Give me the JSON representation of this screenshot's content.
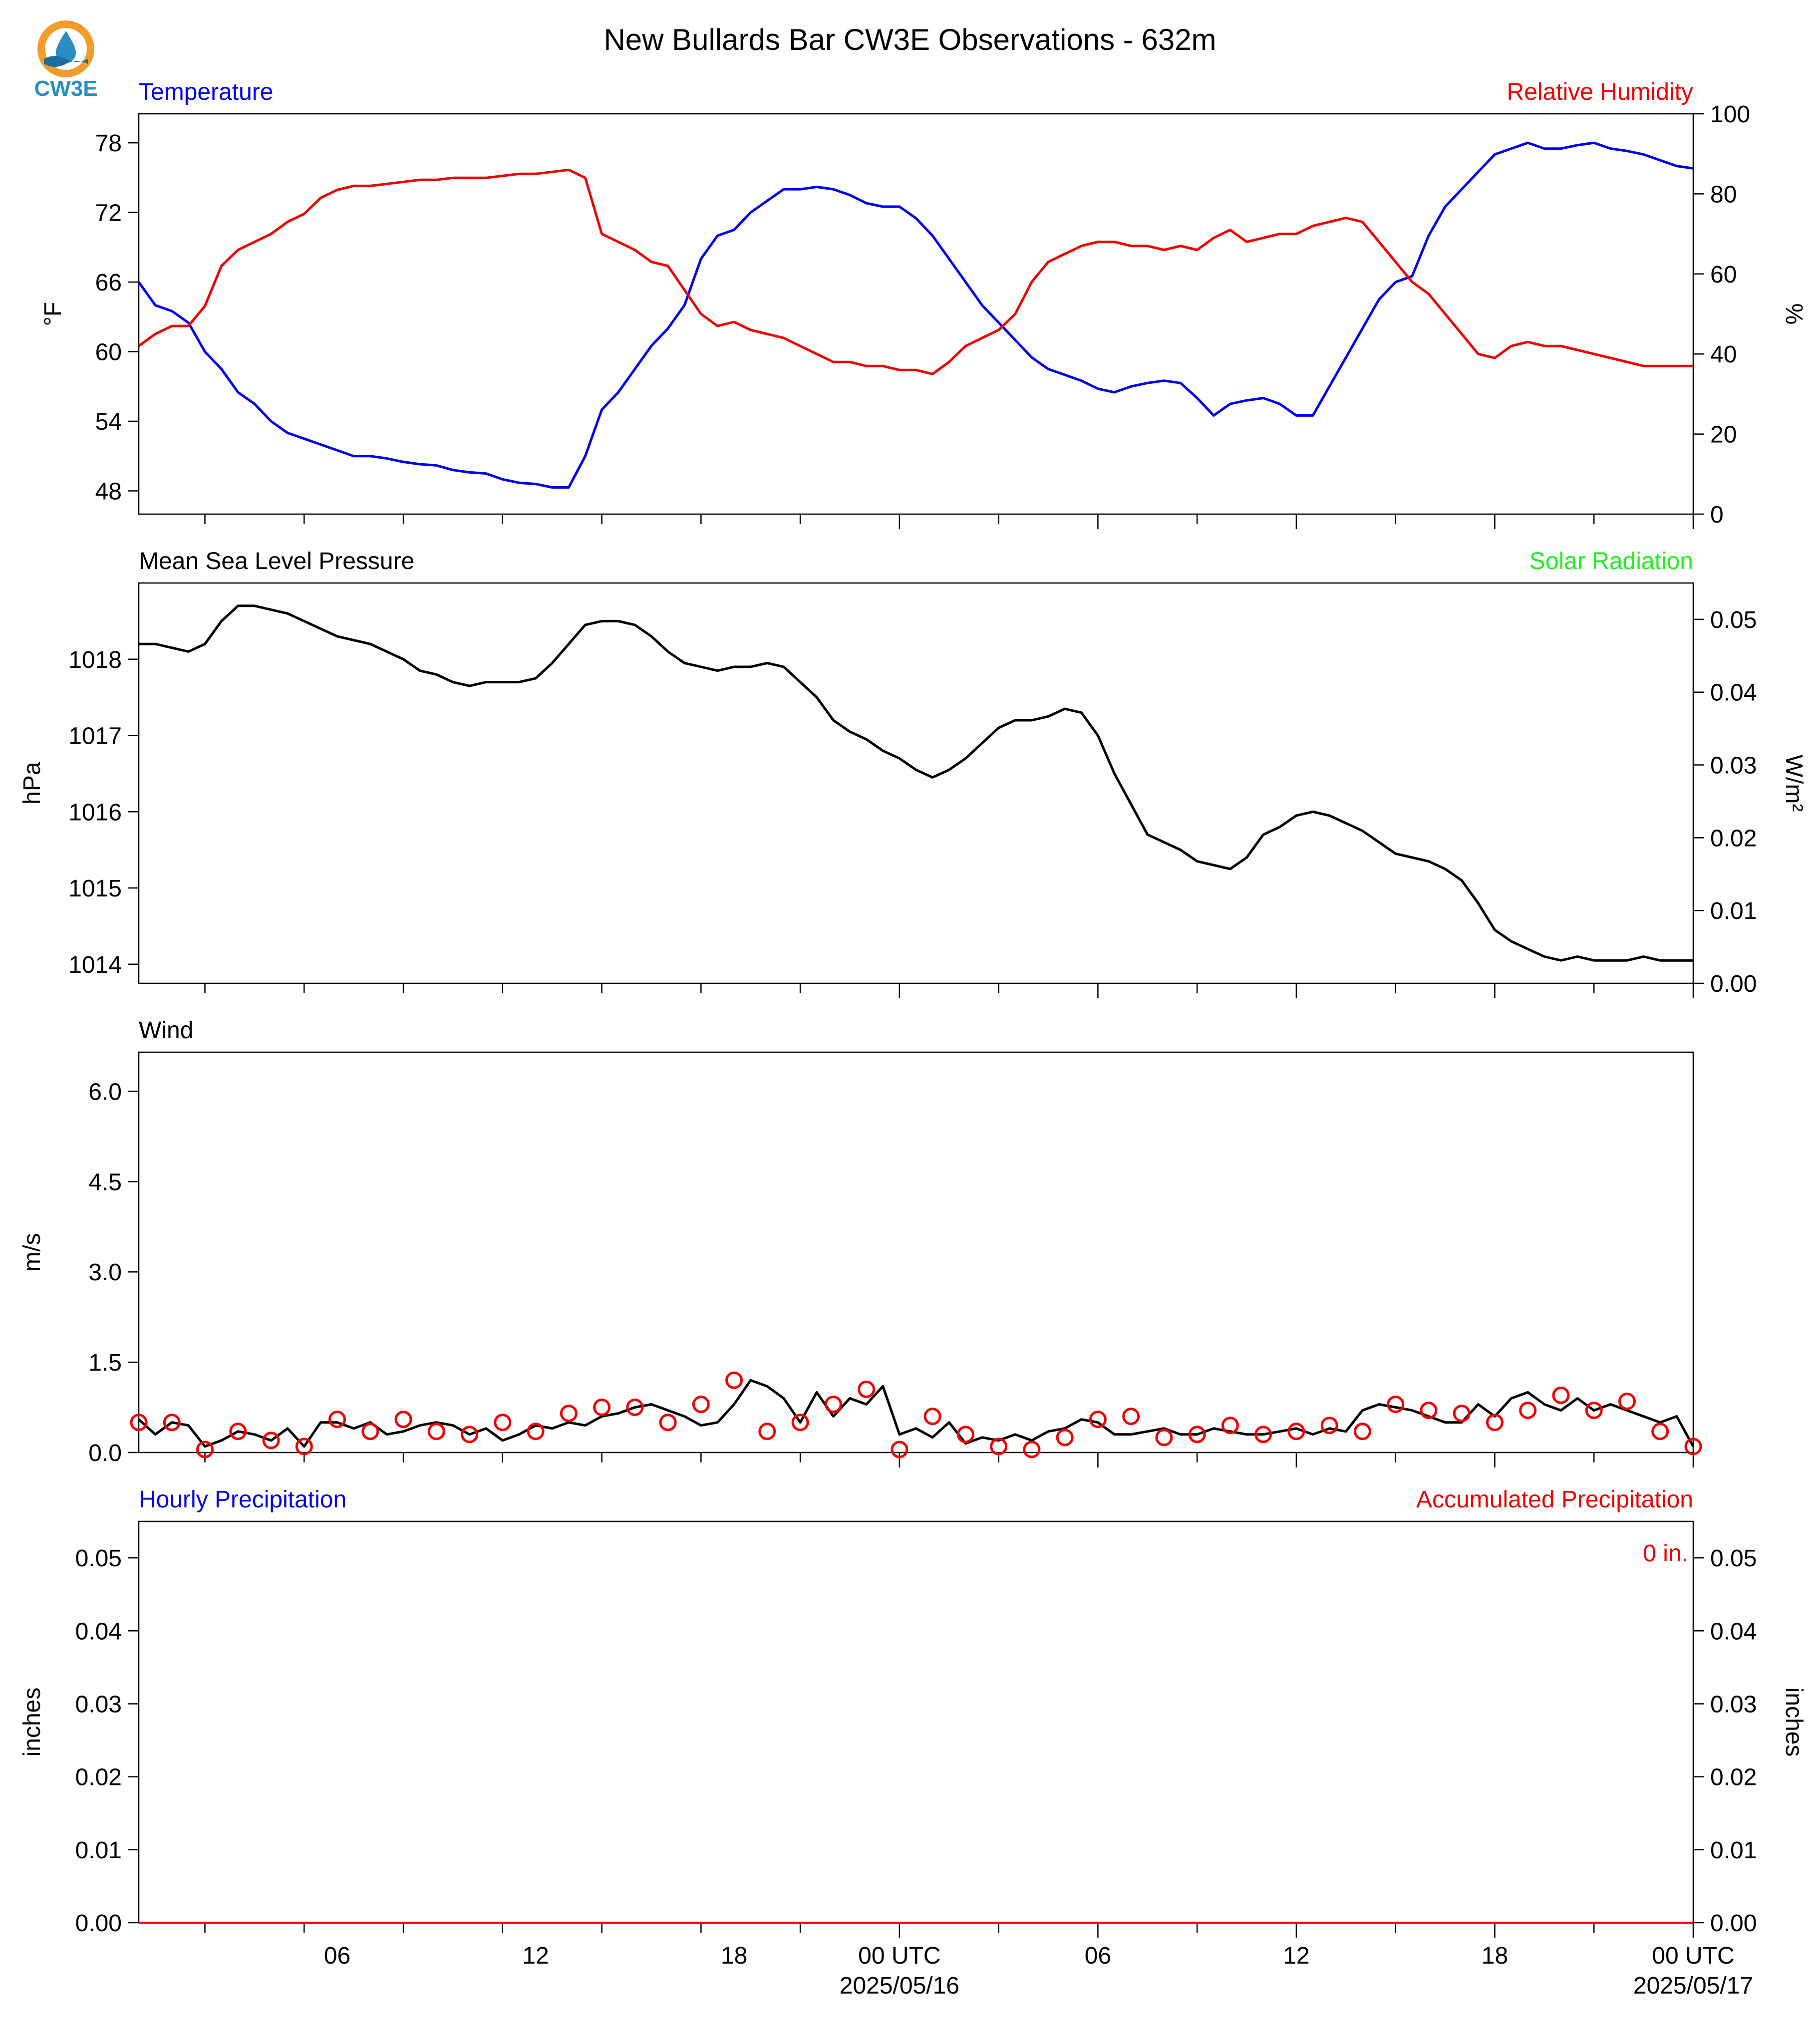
{
  "title": "New Bullards Bar CW3E Observations - 632m",
  "logo": {
    "text": "CW3E",
    "colors": {
      "ring": "#f39c2c",
      "drop": "#2a8ec0",
      "wave": "#1b6f9e"
    }
  },
  "time_axis": {
    "start": "2025-05-15 00 UTC",
    "end": "2025-05-17 00 UTC",
    "step_hours": 3,
    "labels": [
      {
        "hour": 6,
        "text": "06"
      },
      {
        "hour": 12,
        "text": "12"
      },
      {
        "hour": 18,
        "text": "18"
      },
      {
        "hour": 23,
        "text": "00 UTC",
        "sub": "2025/05/16"
      },
      {
        "hour": 29,
        "text": "06"
      },
      {
        "hour": 35,
        "text": "12"
      },
      {
        "hour": 41,
        "text": "18"
      },
      {
        "hour": 47,
        "text": "00 UTC",
        "sub": "2025/05/17"
      }
    ]
  },
  "colors": {
    "temperature": "#0000ee",
    "humidity": "#ee0000",
    "pressure": "#000000",
    "solar": "#22ee22",
    "wind": "#000000",
    "gust": "#ee0000",
    "hourly_precip": "#0000ee",
    "accum_precip": "#ee0000"
  },
  "chart_data": [
    {
      "type": "line",
      "left_title": "Temperature",
      "right_title": "Relative Humidity",
      "ylabel": "°F",
      "y2label": "%",
      "ylim": [
        46,
        80.5
      ],
      "y2lim": [
        0,
        100
      ],
      "yticks": [
        48,
        54,
        60,
        66,
        72,
        78
      ],
      "y2ticks": [
        0,
        20,
        40,
        60,
        80,
        100
      ],
      "series": [
        {
          "name": "Temperature",
          "axis": "left",
          "color": "#0000ee",
          "x": [
            0,
            0.5,
            1,
            1.5,
            2,
            2.5,
            3,
            3.5,
            4,
            4.5,
            5,
            5.5,
            6,
            6.5,
            7,
            7.5,
            8,
            8.5,
            9,
            9.5,
            10,
            10.5,
            11,
            11.5,
            12,
            12.5,
            13,
            13.5,
            14,
            14.5,
            15,
            15.5,
            16,
            16.5,
            17,
            17.5,
            18,
            18.5,
            19,
            19.5,
            20,
            20.5,
            21,
            21.5,
            22,
            22.5,
            23,
            23.5,
            24,
            24.5,
            25,
            25.5,
            26,
            26.5,
            27,
            27.5,
            28,
            28.5,
            29,
            29.5,
            30,
            30.5,
            31,
            31.5,
            32,
            32.5,
            33,
            33.5,
            34,
            34.5,
            35,
            35.5,
            36,
            36.5,
            37,
            37.5,
            38,
            38.5,
            39,
            39.5,
            40,
            40.5,
            41,
            41.5,
            42,
            42.5,
            43,
            43.5,
            44,
            44.5,
            45,
            45.5,
            46,
            46.5,
            47
          ],
          "y": [
            66,
            64,
            63.5,
            62.5,
            60,
            58.5,
            56.5,
            55.5,
            54,
            53,
            52.5,
            52,
            51.5,
            51,
            51,
            50.8,
            50.5,
            50.3,
            50.2,
            49.8,
            49.6,
            49.5,
            49,
            48.7,
            48.6,
            48.3,
            48.3,
            51,
            55,
            56.5,
            58.5,
            60.5,
            62,
            64,
            68,
            70,
            70.5,
            72,
            73,
            74,
            74,
            74.2,
            74,
            73.5,
            72.8,
            72.5,
            72.5,
            71.5,
            70,
            68,
            66,
            64,
            62.5,
            61,
            59.5,
            58.5,
            58,
            57.5,
            56.8,
            56.5,
            57,
            57.3,
            57.5,
            57.3,
            56,
            54.5,
            55.5,
            55.8,
            56,
            55.5,
            54.5,
            54.5,
            57,
            59.5,
            62,
            64.5,
            66,
            66.5,
            70,
            72.5,
            74,
            75.5,
            77,
            77.5,
            78,
            77.5,
            77.5,
            77.8,
            78,
            77.5,
            77.3,
            77,
            76.5,
            76,
            75.8
          ]
        },
        {
          "name": "Relative Humidity",
          "axis": "right",
          "color": "#ee0000",
          "x": [
            0,
            0.5,
            1,
            1.5,
            2,
            2.5,
            3,
            3.5,
            4,
            4.5,
            5,
            5.5,
            6,
            6.5,
            7,
            7.5,
            8,
            8.5,
            9,
            9.5,
            10,
            10.5,
            11,
            11.5,
            12,
            12.5,
            13,
            13.5,
            14,
            14.5,
            15,
            15.5,
            16,
            16.5,
            17,
            17.5,
            18,
            18.5,
            19,
            19.5,
            20,
            20.5,
            21,
            21.5,
            22,
            22.5,
            23,
            23.5,
            24,
            24.5,
            25,
            25.5,
            26,
            26.5,
            27,
            27.5,
            28,
            28.5,
            29,
            29.5,
            30,
            30.5,
            31,
            31.5,
            32,
            32.5,
            33,
            33.5,
            34,
            34.5,
            35,
            35.5,
            36,
            36.5,
            37,
            37.5,
            38,
            38.5,
            39,
            39.5,
            40,
            40.5,
            41,
            41.5,
            42,
            42.5,
            43,
            43.5,
            44,
            44.5,
            45,
            45.5,
            46,
            46.5,
            47
          ],
          "y": [
            42,
            45,
            47,
            47,
            52,
            62,
            66,
            68,
            70,
            73,
            75,
            79,
            81,
            82,
            82,
            82.5,
            83,
            83.5,
            83.5,
            84,
            84,
            84,
            84.5,
            85,
            85,
            85.5,
            86,
            84,
            70,
            68,
            66,
            63,
            62,
            56,
            50,
            47,
            48,
            46,
            45,
            44,
            42,
            40,
            38,
            38,
            37,
            37,
            36,
            36,
            35,
            38,
            42,
            44,
            46,
            50,
            58,
            63,
            65,
            67,
            68,
            68,
            67,
            67,
            66,
            67,
            66,
            69,
            71,
            68,
            69,
            70,
            70,
            72,
            73,
            74,
            73,
            68,
            63,
            58,
            55,
            50,
            45,
            40,
            39,
            42,
            43,
            42,
            42,
            41,
            40,
            39,
            38,
            37,
            37,
            37,
            37
          ]
        }
      ]
    },
    {
      "type": "line",
      "left_title": "Mean Sea Level Pressure",
      "right_title": "Solar Radiation",
      "ylabel": "hPa",
      "y2label": "W/m²",
      "ylim": [
        1013.75,
        1019.0
      ],
      "y2lim": [
        0,
        0.055
      ],
      "yticks": [
        1014,
        1015,
        1016,
        1017,
        1018
      ],
      "y2ticks": [
        0.0,
        0.01,
        0.02,
        0.03,
        0.04,
        0.05
      ],
      "y2ticklabels": [
        "0.00",
        "0.01",
        "0.02",
        "0.03",
        "0.04",
        "0.05"
      ],
      "series": [
        {
          "name": "Mean Sea Level Pressure",
          "axis": "left",
          "color": "#000000",
          "x": [
            0,
            0.5,
            1,
            1.5,
            2,
            2.5,
            3,
            3.5,
            4,
            4.5,
            5,
            5.5,
            6,
            6.5,
            7,
            7.5,
            8,
            8.5,
            9,
            9.5,
            10,
            10.5,
            11,
            11.5,
            12,
            12.5,
            13,
            13.5,
            14,
            14.5,
            15,
            15.5,
            16,
            16.5,
            17,
            17.5,
            18,
            18.5,
            19,
            19.5,
            20,
            20.5,
            21,
            21.5,
            22,
            22.5,
            23,
            23.5,
            24,
            24.5,
            25,
            25.5,
            26,
            26.5,
            27,
            27.5,
            28,
            28.5,
            29,
            29.5,
            30,
            30.5,
            31,
            31.5,
            32,
            32.5,
            33,
            33.5,
            34,
            34.5,
            35,
            35.5,
            36,
            36.5,
            37,
            37.5,
            38,
            38.5,
            39,
            39.5,
            40,
            40.5,
            41,
            41.5,
            42,
            42.5,
            43,
            43.5,
            44,
            44.5,
            45,
            45.5,
            46,
            46.5,
            47
          ],
          "y": [
            1018.2,
            1018.2,
            1018.15,
            1018.1,
            1018.2,
            1018.5,
            1018.7,
            1018.7,
            1018.65,
            1018.6,
            1018.5,
            1018.4,
            1018.3,
            1018.25,
            1018.2,
            1018.1,
            1018,
            1017.85,
            1017.8,
            1017.7,
            1017.65,
            1017.7,
            1017.7,
            1017.7,
            1017.75,
            1017.95,
            1018.2,
            1018.45,
            1018.5,
            1018.5,
            1018.45,
            1018.3,
            1018.1,
            1017.95,
            1017.9,
            1017.85,
            1017.9,
            1017.9,
            1017.95,
            1017.9,
            1017.7,
            1017.5,
            1017.2,
            1017.05,
            1016.95,
            1016.8,
            1016.7,
            1016.55,
            1016.45,
            1016.55,
            1016.7,
            1016.9,
            1017.1,
            1017.2,
            1017.2,
            1017.25,
            1017.35,
            1017.3,
            1017.0,
            1016.5,
            1016.1,
            1015.7,
            1015.6,
            1015.5,
            1015.35,
            1015.3,
            1015.25,
            1015.4,
            1015.7,
            1015.8,
            1015.95,
            1016.0,
            1015.95,
            1015.85,
            1015.75,
            1015.6,
            1015.45,
            1015.4,
            1015.35,
            1015.25,
            1015.1,
            1014.8,
            1014.45,
            1014.3,
            1014.2,
            1014.1,
            1014.05,
            1014.1,
            1014.05,
            1014.05,
            1014.05,
            1014.1,
            1014.05,
            1014.05,
            1014.05
          ]
        },
        {
          "name": "Solar Radiation",
          "axis": "right",
          "color": "#22ee22",
          "x": [],
          "y": []
        }
      ]
    },
    {
      "type": "line",
      "left_title": "Wind",
      "ylabel": "m/s",
      "ylim": [
        0,
        6.65
      ],
      "yticks": [
        0.0,
        1.5,
        3.0,
        4.5,
        6.0
      ],
      "yticklabels": [
        "0.0",
        "1.5",
        "3.0",
        "4.5",
        "6.0"
      ],
      "series": [
        {
          "name": "Wind",
          "color": "#000000",
          "x": [
            0,
            0.5,
            1,
            1.5,
            2,
            2.5,
            3,
            3.5,
            4,
            4.5,
            5,
            5.5,
            6,
            6.5,
            7,
            7.5,
            8,
            8.5,
            9,
            9.5,
            10,
            10.5,
            11,
            11.5,
            12,
            12.5,
            13,
            13.5,
            14,
            14.5,
            15,
            15.5,
            16,
            16.5,
            17,
            17.5,
            18,
            18.5,
            19,
            19.5,
            20,
            20.5,
            21,
            21.5,
            22,
            22.5,
            23,
            23.5,
            24,
            24.5,
            25,
            25.5,
            26,
            26.5,
            27,
            27.5,
            28,
            28.5,
            29,
            29.5,
            30,
            30.5,
            31,
            31.5,
            32,
            32.5,
            33,
            33.5,
            34,
            34.5,
            35,
            35.5,
            36,
            36.5,
            37,
            37.5,
            38,
            38.5,
            39,
            39.5,
            40,
            40.5,
            41,
            41.5,
            42,
            42.5,
            43,
            43.5,
            44,
            44.5,
            45,
            45.5,
            46,
            46.5,
            47
          ],
          "y": [
            0.55,
            0.3,
            0.5,
            0.45,
            0.1,
            0.2,
            0.35,
            0.3,
            0.2,
            0.4,
            0.1,
            0.5,
            0.5,
            0.4,
            0.5,
            0.3,
            0.35,
            0.45,
            0.5,
            0.45,
            0.3,
            0.4,
            0.2,
            0.3,
            0.45,
            0.4,
            0.5,
            0.45,
            0.6,
            0.65,
            0.75,
            0.8,
            0.7,
            0.6,
            0.45,
            0.5,
            0.8,
            1.2,
            1.1,
            0.9,
            0.5,
            1.0,
            0.6,
            0.9,
            0.8,
            1.1,
            0.3,
            0.4,
            0.25,
            0.5,
            0.15,
            0.25,
            0.2,
            0.3,
            0.2,
            0.35,
            0.4,
            0.55,
            0.5,
            0.3,
            0.3,
            0.35,
            0.4,
            0.3,
            0.3,
            0.4,
            0.35,
            0.3,
            0.3,
            0.35,
            0.4,
            0.3,
            0.4,
            0.35,
            0.7,
            0.8,
            0.75,
            0.7,
            0.6,
            0.5,
            0.5,
            0.8,
            0.6,
            0.9,
            1.0,
            0.8,
            0.7,
            0.9,
            0.7,
            0.8,
            0.7,
            0.6,
            0.5,
            0.6,
            0.1
          ]
        },
        {
          "name": "Gust",
          "color": "#ee0000",
          "style": "circles",
          "x": [
            0,
            1,
            2,
            3,
            4,
            5,
            6,
            7,
            8,
            9,
            10,
            11,
            12,
            13,
            14,
            15,
            16,
            17,
            18,
            19,
            20,
            21,
            22,
            23,
            24,
            25,
            26,
            27,
            28,
            29,
            30,
            31,
            32,
            33,
            34,
            35,
            36,
            37,
            38,
            39,
            40,
            41,
            42,
            43,
            44,
            45,
            46,
            47
          ],
          "y": [
            0.5,
            0.5,
            0.05,
            0.35,
            0.2,
            0.1,
            0.55,
            0.35,
            0.55,
            0.35,
            0.3,
            0.5,
            0.35,
            0.65,
            0.75,
            0.75,
            0.5,
            0.8,
            1.2,
            0.35,
            0.5,
            0.8,
            1.05,
            0.05,
            0.6,
            0.3,
            0.1,
            0.05,
            0.25,
            0.55,
            0.6,
            0.25,
            0.3,
            0.45,
            0.3,
            0.35,
            0.45,
            0.35,
            0.8,
            0.7,
            0.65,
            0.5,
            0.7,
            0.95,
            0.7,
            0.85,
            0.35,
            0.1
          ]
        }
      ]
    },
    {
      "type": "line",
      "left_title": "Hourly Precipitation",
      "right_title": "Accumulated Precipitation",
      "ylabel": "inches",
      "y2label": "inches",
      "ylim": [
        0,
        0.055
      ],
      "y2lim": [
        0,
        0.055
      ],
      "yticks": [
        0.0,
        0.01,
        0.02,
        0.03,
        0.04,
        0.05
      ],
      "yticklabels": [
        "0.00",
        "0.01",
        "0.02",
        "0.03",
        "0.04",
        "0.05"
      ],
      "y2ticks": [
        0.0,
        0.01,
        0.02,
        0.03,
        0.04,
        0.05
      ],
      "y2ticklabels": [
        "0.00",
        "0.01",
        "0.02",
        "0.03",
        "0.04",
        "0.05"
      ],
      "annotation": "0 in.",
      "series": [
        {
          "name": "Hourly Precipitation",
          "color": "#0000ee",
          "x": [
            0,
            47
          ],
          "y": [
            0,
            0
          ]
        },
        {
          "name": "Accumulated Precipitation",
          "color": "#ee0000",
          "x": [
            0,
            47
          ],
          "y": [
            0,
            0
          ]
        }
      ]
    }
  ]
}
